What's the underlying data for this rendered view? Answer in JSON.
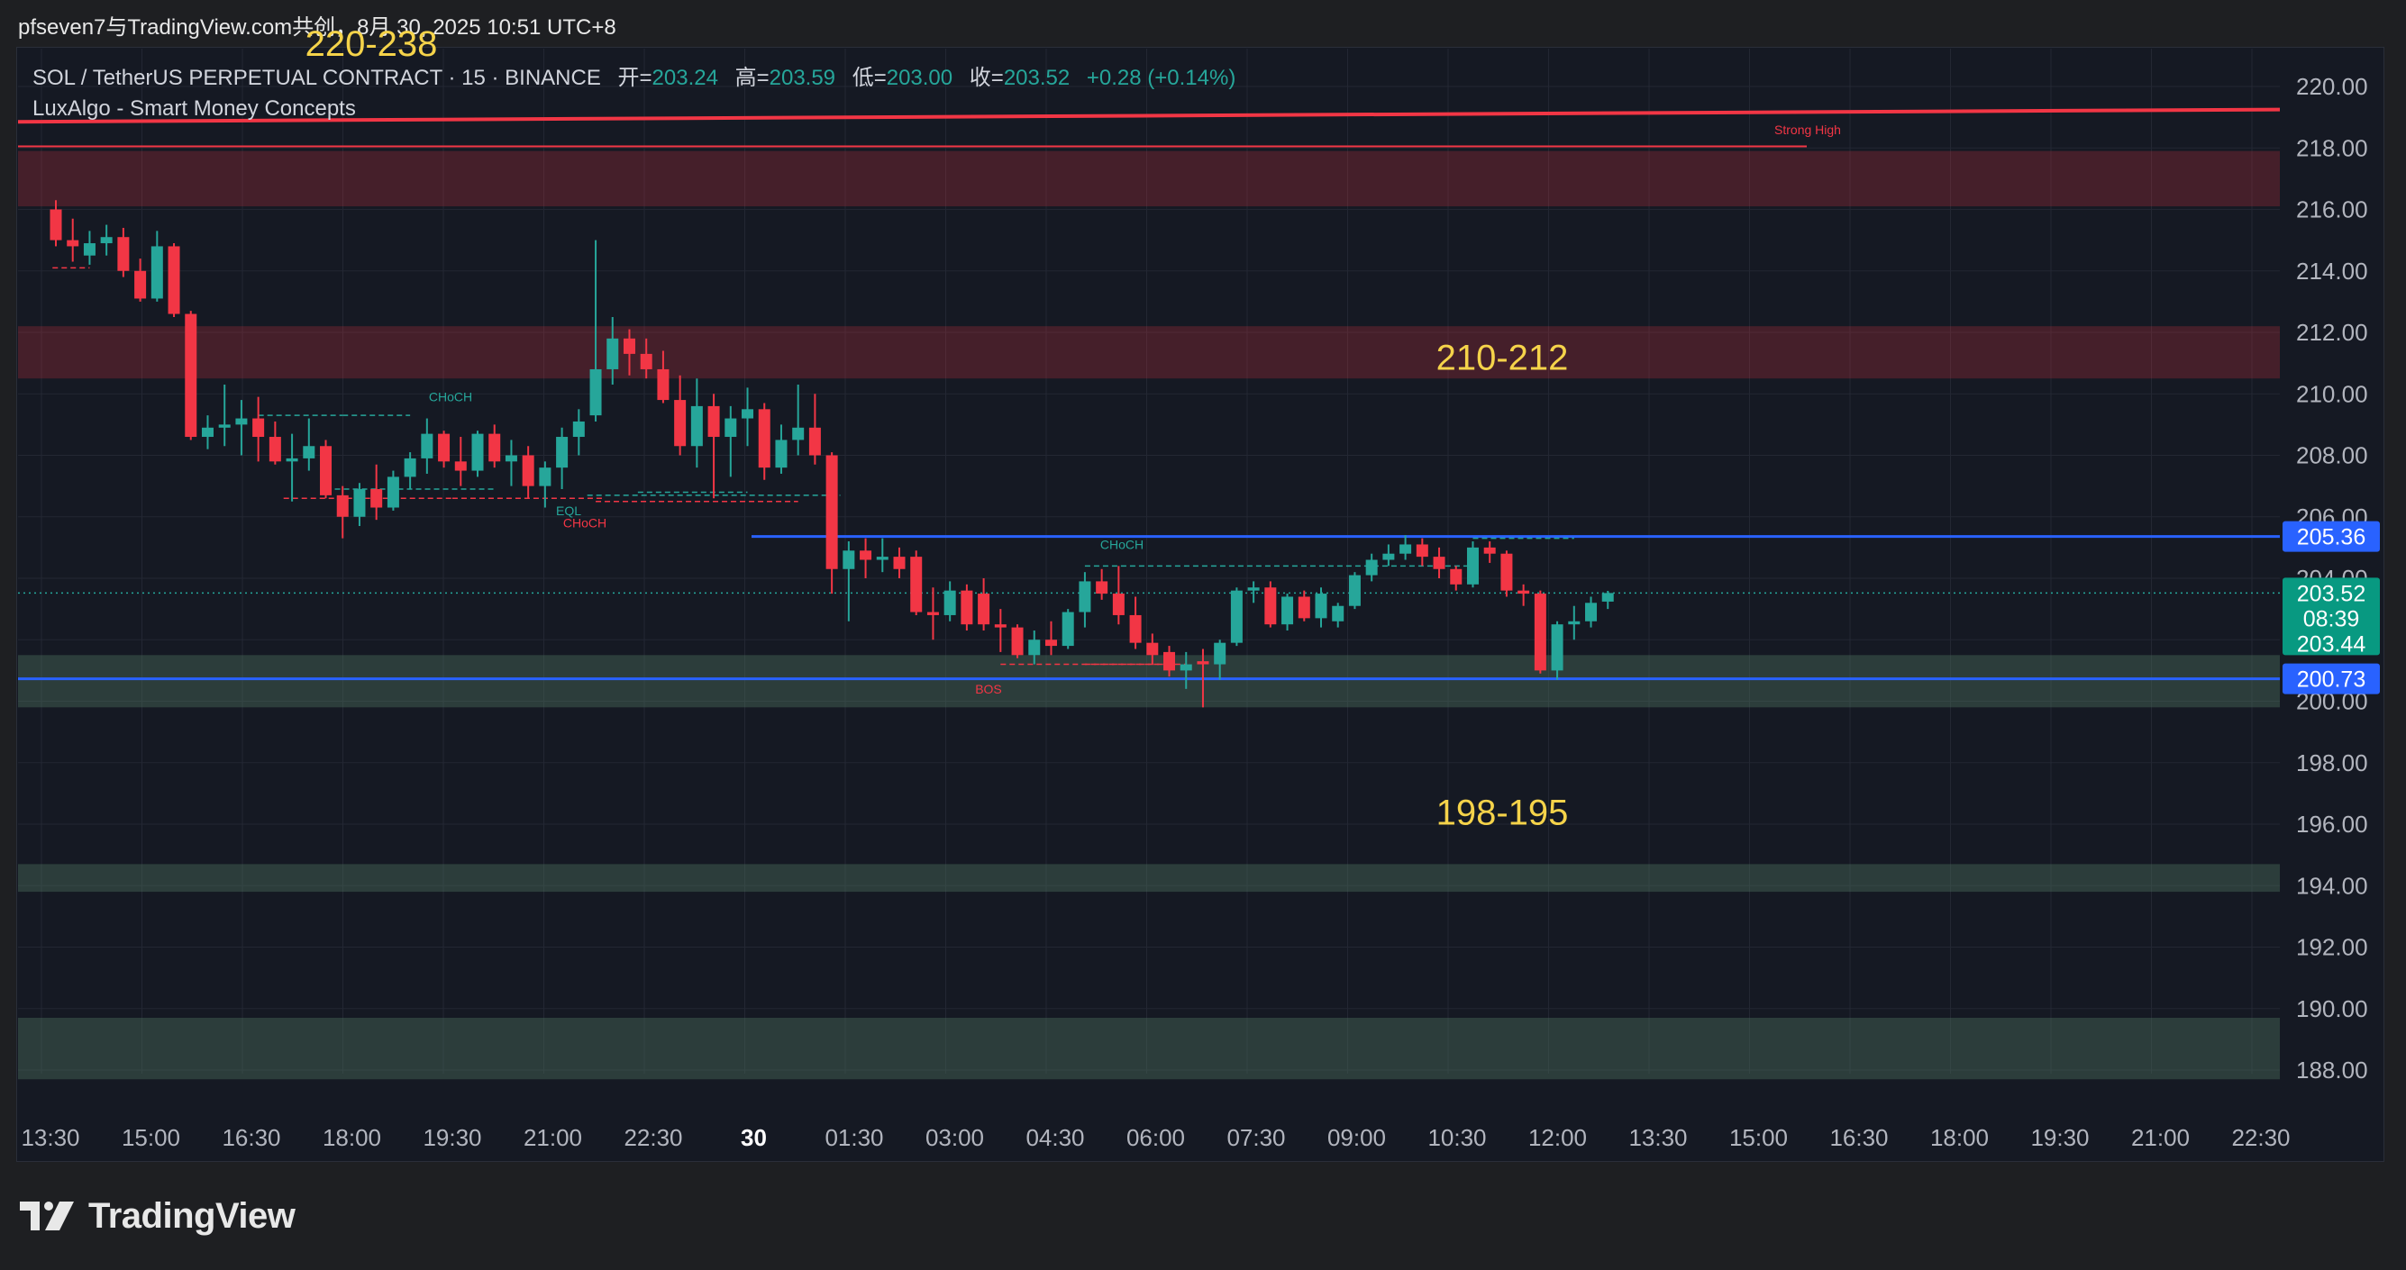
{
  "header": {
    "attribution": "pfseven7与TradingView.com共创，8月 30, 2025 10:51 UTC+8"
  },
  "legend": {
    "symbol": "SOL / TetherUS PERPETUAL CONTRACT · 15 · BINANCE",
    "open_label": "开=",
    "open": "203.24",
    "high_label": "高=",
    "high": "203.59",
    "low_label": "低=",
    "low": "203.00",
    "close_label": "收=",
    "close": "203.52",
    "change": "+0.28 (+0.14%)",
    "indicator": "LuxAlgo - Smart Money Concepts"
  },
  "footer": {
    "brand": "TradingView",
    "logo_icon": "tradingview-logo-icon"
  },
  "colors": {
    "background": "#151923",
    "up": "#26a69a",
    "down": "#f23645",
    "blue_line": "#2962ff",
    "zone_red": "rgba(242,54,69,0.22)",
    "zone_green": "rgba(76,112,92,0.42)",
    "annotation_yellow": "#f5d34a",
    "axis_text": "#b2b5be"
  },
  "chart_data": {
    "type": "candlestick",
    "ylim": [
      187,
      221
    ],
    "y_ticks": [
      "220.00",
      "218.00",
      "216.00",
      "214.00",
      "212.00",
      "210.00",
      "208.00",
      "206.00",
      "204.00",
      "202.00",
      "200.00",
      "198.00",
      "196.00",
      "194.00",
      "192.00",
      "190.00",
      "188.00"
    ],
    "x_ticks": [
      "13:30",
      "15:00",
      "16:30",
      "18:00",
      "19:30",
      "21:00",
      "22:30",
      "30",
      "01:30",
      "03:00",
      "04:30",
      "06:00",
      "07:30",
      "09:00",
      "10:30",
      "12:00",
      "13:30",
      "15:00",
      "16:30",
      "18:00",
      "19:30",
      "21:00",
      "22:30"
    ],
    "candles": [
      {
        "t": "13:00",
        "o": 216.0,
        "h": 216.3,
        "l": 214.8,
        "c": 215.0
      },
      {
        "t": "13:15",
        "o": 215.0,
        "h": 215.7,
        "l": 214.3,
        "c": 214.8
      },
      {
        "t": "13:30",
        "o": 214.5,
        "h": 215.3,
        "l": 214.2,
        "c": 214.9
      },
      {
        "t": "13:45",
        "o": 214.9,
        "h": 215.5,
        "l": 214.5,
        "c": 215.1
      },
      {
        "t": "14:00",
        "o": 215.1,
        "h": 215.4,
        "l": 213.8,
        "c": 214.0
      },
      {
        "t": "14:15",
        "o": 214.0,
        "h": 214.4,
        "l": 213.0,
        "c": 213.1
      },
      {
        "t": "14:30",
        "o": 213.1,
        "h": 215.3,
        "l": 213.0,
        "c": 214.8
      },
      {
        "t": "14:45",
        "o": 214.8,
        "h": 214.9,
        "l": 212.5,
        "c": 212.6
      },
      {
        "t": "15:00",
        "o": 212.6,
        "h": 212.7,
        "l": 208.5,
        "c": 208.6
      },
      {
        "t": "15:15",
        "o": 208.6,
        "h": 209.3,
        "l": 208.2,
        "c": 208.9
      },
      {
        "t": "15:30",
        "o": 208.9,
        "h": 210.3,
        "l": 208.3,
        "c": 209.0
      },
      {
        "t": "15:45",
        "o": 209.0,
        "h": 209.8,
        "l": 208.0,
        "c": 209.2
      },
      {
        "t": "16:00",
        "o": 209.2,
        "h": 209.9,
        "l": 207.8,
        "c": 208.6
      },
      {
        "t": "16:15",
        "o": 208.6,
        "h": 209.1,
        "l": 207.7,
        "c": 207.8
      },
      {
        "t": "16:30",
        "o": 207.8,
        "h": 208.7,
        "l": 206.5,
        "c": 207.9
      },
      {
        "t": "16:45",
        "o": 207.9,
        "h": 209.2,
        "l": 207.5,
        "c": 208.3
      },
      {
        "t": "17:00",
        "o": 208.3,
        "h": 208.5,
        "l": 206.6,
        "c": 206.7
      },
      {
        "t": "17:15",
        "o": 206.7,
        "h": 207.0,
        "l": 205.3,
        "c": 206.0
      },
      {
        "t": "17:30",
        "o": 206.0,
        "h": 207.1,
        "l": 205.7,
        "c": 206.9
      },
      {
        "t": "17:45",
        "o": 206.9,
        "h": 207.7,
        "l": 205.9,
        "c": 206.3
      },
      {
        "t": "18:00",
        "o": 206.3,
        "h": 207.5,
        "l": 206.2,
        "c": 207.3
      },
      {
        "t": "18:15",
        "o": 207.3,
        "h": 208.1,
        "l": 206.9,
        "c": 207.9
      },
      {
        "t": "18:30",
        "o": 207.9,
        "h": 209.2,
        "l": 207.4,
        "c": 208.7
      },
      {
        "t": "18:45",
        "o": 208.7,
        "h": 208.8,
        "l": 207.6,
        "c": 207.8
      },
      {
        "t": "19:00",
        "o": 207.8,
        "h": 208.6,
        "l": 207.0,
        "c": 207.5
      },
      {
        "t": "19:15",
        "o": 207.5,
        "h": 208.8,
        "l": 207.3,
        "c": 208.7
      },
      {
        "t": "19:30",
        "o": 208.7,
        "h": 209.0,
        "l": 207.6,
        "c": 207.8
      },
      {
        "t": "19:45",
        "o": 207.8,
        "h": 208.5,
        "l": 207.0,
        "c": 208.0
      },
      {
        "t": "20:00",
        "o": 208.0,
        "h": 208.3,
        "l": 206.6,
        "c": 207.0
      },
      {
        "t": "20:15",
        "o": 207.0,
        "h": 207.8,
        "l": 206.3,
        "c": 207.6
      },
      {
        "t": "20:30",
        "o": 207.6,
        "h": 208.9,
        "l": 206.9,
        "c": 208.6
      },
      {
        "t": "20:45",
        "o": 208.6,
        "h": 209.5,
        "l": 208.0,
        "c": 209.1
      },
      {
        "t": "21:00",
        "o": 209.3,
        "h": 215.0,
        "l": 209.1,
        "c": 210.8
      },
      {
        "t": "21:15",
        "o": 210.8,
        "h": 212.5,
        "l": 210.3,
        "c": 211.8
      },
      {
        "t": "21:30",
        "o": 211.8,
        "h": 212.1,
        "l": 210.6,
        "c": 211.3
      },
      {
        "t": "21:45",
        "o": 211.3,
        "h": 211.8,
        "l": 210.5,
        "c": 210.8
      },
      {
        "t": "22:00",
        "o": 210.8,
        "h": 211.4,
        "l": 209.7,
        "c": 209.8
      },
      {
        "t": "22:15",
        "o": 209.8,
        "h": 210.6,
        "l": 208.0,
        "c": 208.3
      },
      {
        "t": "22:30",
        "o": 208.3,
        "h": 210.5,
        "l": 207.6,
        "c": 209.6
      },
      {
        "t": "22:45",
        "o": 209.6,
        "h": 210.0,
        "l": 206.6,
        "c": 208.6
      },
      {
        "t": "23:00",
        "o": 208.6,
        "h": 209.6,
        "l": 207.3,
        "c": 209.2
      },
      {
        "t": "23:15",
        "o": 209.2,
        "h": 210.2,
        "l": 208.3,
        "c": 209.5
      },
      {
        "t": "23:30",
        "o": 209.5,
        "h": 209.7,
        "l": 207.2,
        "c": 207.6
      },
      {
        "t": "23:45",
        "o": 207.6,
        "h": 209.0,
        "l": 207.4,
        "c": 208.5
      },
      {
        "t": "00:00",
        "o": 208.5,
        "h": 210.3,
        "l": 208.0,
        "c": 208.9
      },
      {
        "t": "00:15",
        "o": 208.9,
        "h": 210.0,
        "l": 207.7,
        "c": 208.0
      },
      {
        "t": "00:30",
        "o": 208.0,
        "h": 208.1,
        "l": 203.5,
        "c": 204.3
      },
      {
        "t": "00:45",
        "o": 204.3,
        "h": 205.2,
        "l": 202.6,
        "c": 204.9
      },
      {
        "t": "01:00",
        "o": 204.9,
        "h": 205.3,
        "l": 204.0,
        "c": 204.6
      },
      {
        "t": "01:15",
        "o": 204.6,
        "h": 205.3,
        "l": 204.2,
        "c": 204.7
      },
      {
        "t": "01:30",
        "o": 204.7,
        "h": 205.0,
        "l": 204.0,
        "c": 204.3
      },
      {
        "t": "01:45",
        "o": 204.7,
        "h": 204.9,
        "l": 202.8,
        "c": 202.9
      },
      {
        "t": "02:00",
        "o": 202.9,
        "h": 203.7,
        "l": 202.0,
        "c": 202.8
      },
      {
        "t": "02:15",
        "o": 202.8,
        "h": 203.9,
        "l": 202.6,
        "c": 203.6
      },
      {
        "t": "02:30",
        "o": 203.6,
        "h": 203.8,
        "l": 202.3,
        "c": 202.5
      },
      {
        "t": "02:45",
        "o": 203.5,
        "h": 204.0,
        "l": 202.3,
        "c": 202.5
      },
      {
        "t": "03:00",
        "o": 202.5,
        "h": 203.0,
        "l": 201.6,
        "c": 202.4
      },
      {
        "t": "03:15",
        "o": 202.4,
        "h": 202.5,
        "l": 201.4,
        "c": 201.5
      },
      {
        "t": "03:30",
        "o": 201.5,
        "h": 202.3,
        "l": 201.2,
        "c": 202.0
      },
      {
        "t": "03:45",
        "o": 202.0,
        "h": 202.6,
        "l": 201.5,
        "c": 201.8
      },
      {
        "t": "04:00",
        "o": 201.8,
        "h": 203.0,
        "l": 201.7,
        "c": 202.9
      },
      {
        "t": "04:15",
        "o": 202.9,
        "h": 204.2,
        "l": 202.4,
        "c": 203.9
      },
      {
        "t": "04:30",
        "o": 203.9,
        "h": 204.3,
        "l": 203.3,
        "c": 203.5
      },
      {
        "t": "04:45",
        "o": 203.5,
        "h": 204.4,
        "l": 202.5,
        "c": 202.8
      },
      {
        "t": "05:00",
        "o": 202.8,
        "h": 203.4,
        "l": 201.7,
        "c": 201.9
      },
      {
        "t": "05:15",
        "o": 201.9,
        "h": 202.2,
        "l": 201.2,
        "c": 201.5
      },
      {
        "t": "05:30",
        "o": 201.6,
        "h": 201.8,
        "l": 200.8,
        "c": 201.0
      },
      {
        "t": "05:45",
        "o": 201.0,
        "h": 201.6,
        "l": 200.4,
        "c": 201.2
      },
      {
        "t": "06:00",
        "o": 201.3,
        "h": 201.7,
        "l": 199.8,
        "c": 201.2
      },
      {
        "t": "06:15",
        "o": 201.2,
        "h": 202.0,
        "l": 200.7,
        "c": 201.9
      },
      {
        "t": "06:30",
        "o": 201.9,
        "h": 203.7,
        "l": 201.8,
        "c": 203.6
      },
      {
        "t": "06:45",
        "o": 203.6,
        "h": 203.9,
        "l": 203.2,
        "c": 203.7
      },
      {
        "t": "07:00",
        "o": 203.7,
        "h": 203.9,
        "l": 202.4,
        "c": 202.5
      },
      {
        "t": "07:15",
        "o": 202.5,
        "h": 203.5,
        "l": 202.3,
        "c": 203.4
      },
      {
        "t": "07:30",
        "o": 203.4,
        "h": 203.6,
        "l": 202.6,
        "c": 202.7
      },
      {
        "t": "07:45",
        "o": 202.7,
        "h": 203.7,
        "l": 202.4,
        "c": 203.5
      },
      {
        "t": "08:00",
        "o": 202.6,
        "h": 203.2,
        "l": 202.4,
        "c": 203.1
      },
      {
        "t": "08:15",
        "o": 203.1,
        "h": 204.2,
        "l": 203.0,
        "c": 204.1
      },
      {
        "t": "08:30",
        "o": 204.1,
        "h": 204.8,
        "l": 203.9,
        "c": 204.6
      },
      {
        "t": "08:45",
        "o": 204.6,
        "h": 205.1,
        "l": 204.4,
        "c": 204.8
      },
      {
        "t": "09:00",
        "o": 204.8,
        "h": 205.4,
        "l": 204.6,
        "c": 205.1
      },
      {
        "t": "09:15",
        "o": 205.1,
        "h": 205.3,
        "l": 204.4,
        "c": 204.7
      },
      {
        "t": "09:30",
        "o": 204.7,
        "h": 205.0,
        "l": 204.0,
        "c": 204.3
      },
      {
        "t": "09:45",
        "o": 204.3,
        "h": 204.4,
        "l": 203.6,
        "c": 203.8
      },
      {
        "t": "10:00",
        "o": 203.8,
        "h": 205.2,
        "l": 203.7,
        "c": 205.0
      },
      {
        "t": "10:15",
        "o": 205.0,
        "h": 205.2,
        "l": 204.5,
        "c": 204.8
      },
      {
        "t": "10:30",
        "o": 204.8,
        "h": 204.9,
        "l": 203.4,
        "c": 203.6
      },
      {
        "t": "10:45",
        "o": 203.6,
        "h": 203.8,
        "l": 203.1,
        "c": 203.5
      },
      {
        "t": "11:00",
        "o": 203.5,
        "h": 203.6,
        "l": 200.9,
        "c": 201.0
      },
      {
        "t": "11:15",
        "o": 201.0,
        "h": 202.6,
        "l": 200.7,
        "c": 202.5
      },
      {
        "t": "11:30",
        "o": 202.5,
        "h": 203.1,
        "l": 202.0,
        "c": 202.6
      },
      {
        "t": "11:45",
        "o": 202.6,
        "h": 203.4,
        "l": 202.4,
        "c": 203.2
      },
      {
        "t": "12:00",
        "o": 203.24,
        "h": 203.59,
        "l": 203.0,
        "c": 203.52
      }
    ],
    "zones": [
      {
        "type": "supply",
        "from": 216.1,
        "to": 217.9
      },
      {
        "type": "supply",
        "from": 210.5,
        "to": 212.2
      },
      {
        "type": "demand",
        "from": 199.8,
        "to": 201.5
      },
      {
        "type": "demand",
        "from": 193.8,
        "to": 194.7
      },
      {
        "type": "demand",
        "from": 187.7,
        "to": 189.7
      }
    ],
    "horizontal_lines": [
      {
        "price": 205.36,
        "label": "205.36",
        "color": "blue"
      },
      {
        "price": 200.73,
        "label": "200.73",
        "color": "blue"
      }
    ],
    "price_labels": {
      "current_price": "203.52",
      "countdown": "08:39",
      "secondary_price": "203.44"
    },
    "annotations": [
      {
        "text": "220-238",
        "price": 221.4
      },
      {
        "text": "210-212",
        "price": 211.2
      },
      {
        "text": "198-195",
        "price": 196.4
      }
    ],
    "structure_labels": [
      {
        "text": "Strong High",
        "price": 218.6
      },
      {
        "text": "CHoCH",
        "price": 209.9
      },
      {
        "text": "EQL",
        "price": 206.2
      },
      {
        "text": "CHoCH",
        "price": 205.8
      },
      {
        "text": "CHoCH",
        "price": 205.1
      },
      {
        "text": "BOS",
        "price": 200.4
      }
    ]
  }
}
